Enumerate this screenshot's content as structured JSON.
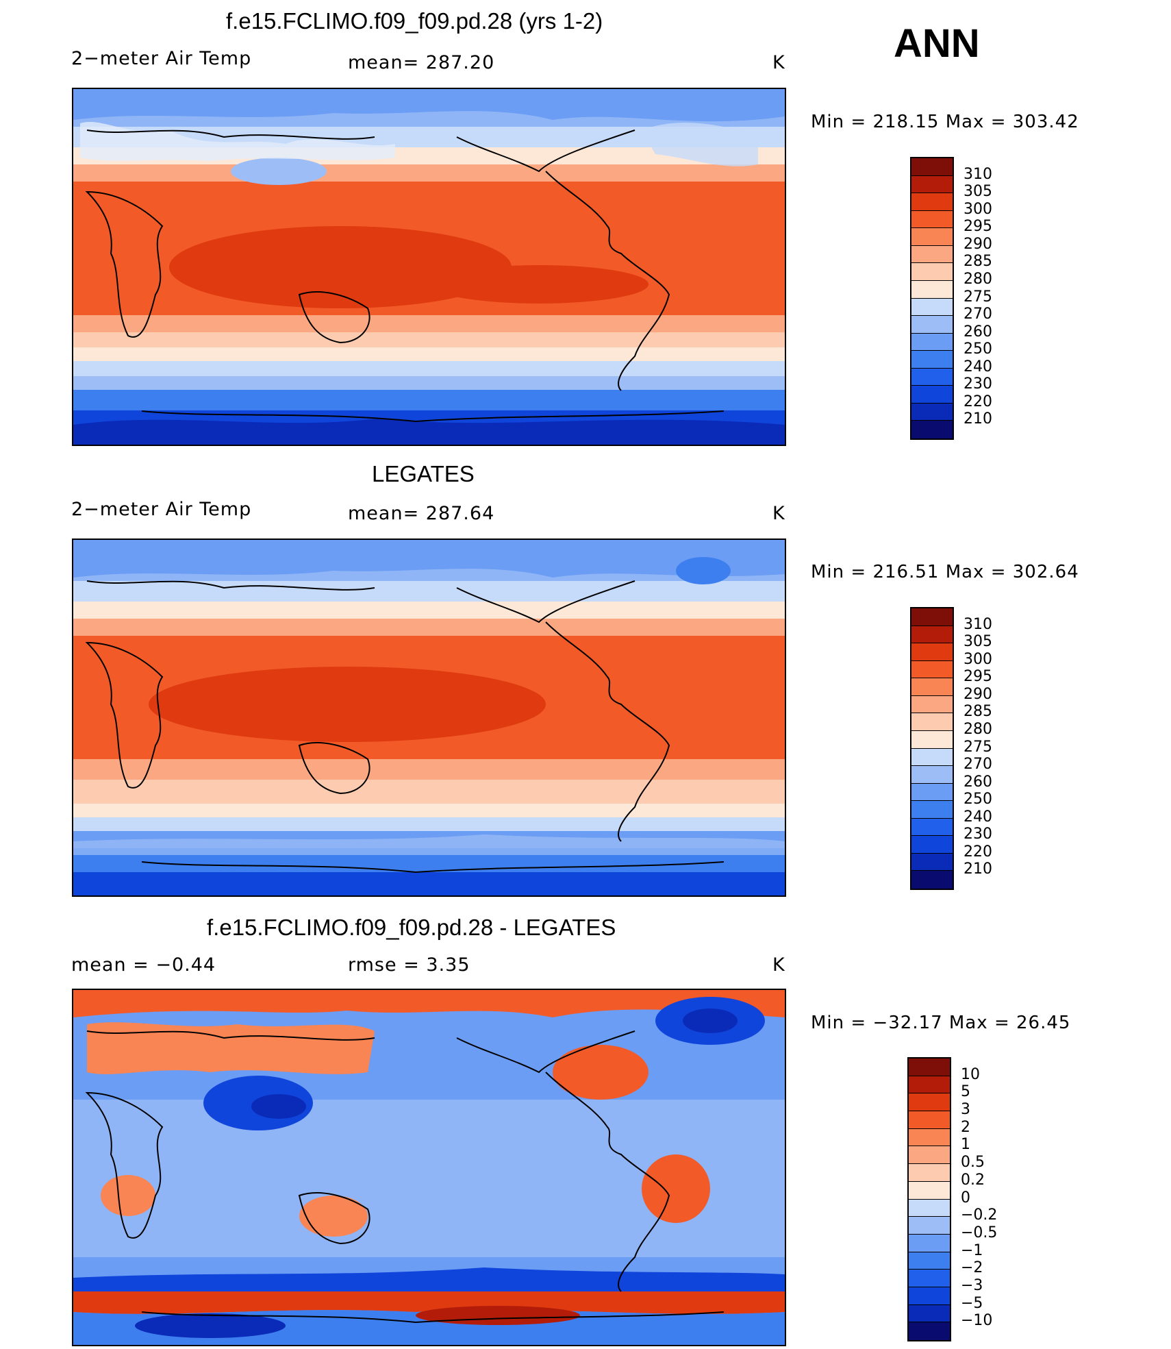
{
  "season": "ANN",
  "units_label": "K",
  "colors": {
    "temp_scale": [
      "#0a0b6e",
      "#0a2ab8",
      "#1045dc",
      "#2060ea",
      "#3e7ff0",
      "#6b9df4",
      "#9dbdf7",
      "#c6daf9",
      "#e2ecfb",
      "#fde8d8",
      "#fccbb0",
      "#fba882",
      "#f98554",
      "#f25a28",
      "#df3a10",
      "#b41c0a",
      "#7e0f08"
    ],
    "diff_scale": [
      "#0a0b6e",
      "#0a2ab8",
      "#1045dc",
      "#2060ea",
      "#3e7ff0",
      "#6b9df4",
      "#9dbdf7",
      "#c6daf9",
      "#e2ecfb",
      "#fde8d8",
      "#fccbb0",
      "#fba882",
      "#f98554",
      "#f25a28",
      "#df3a10",
      "#b41c0a",
      "#7e0f08"
    ]
  },
  "panels": [
    {
      "id": "model",
      "title": "f.e15.FCLIMO.f09_f09.pd.28 (yrs 1-2)",
      "left_label": "2−meter Air Temp",
      "mid_label": "mean=  287.20",
      "right_label": "K",
      "minmax": "Min  =  218.15  Max  =  303.42",
      "colorbar_labels": [
        "310",
        "305",
        "300",
        "295",
        "290",
        "285",
        "280",
        "275",
        "270",
        "260",
        "250",
        "240",
        "230",
        "220",
        "210"
      ]
    },
    {
      "id": "obs",
      "title": "LEGATES",
      "left_label": "2−meter Air Temp",
      "mid_label": "mean=  287.64",
      "right_label": "K",
      "minmax": "Min  =  216.51  Max  =  302.64",
      "colorbar_labels": [
        "310",
        "305",
        "300",
        "295",
        "290",
        "285",
        "280",
        "275",
        "270",
        "260",
        "250",
        "240",
        "230",
        "220",
        "210"
      ]
    },
    {
      "id": "diff",
      "title": "f.e15.FCLIMO.f09_f09.pd.28 - LEGATES",
      "left_label": "mean  =     −0.44",
      "mid_label": "rmse  =      3.35",
      "right_label": "K",
      "minmax": "Min  =  −32.17  Max  =    26.45",
      "colorbar_labels": [
        "10",
        "5",
        "3",
        "2",
        "1",
        "0.5",
        "0.2",
        "0",
        "−0.2",
        "−0.5",
        "−1",
        "−2",
        "−3",
        "−5",
        "−10"
      ]
    }
  ]
}
